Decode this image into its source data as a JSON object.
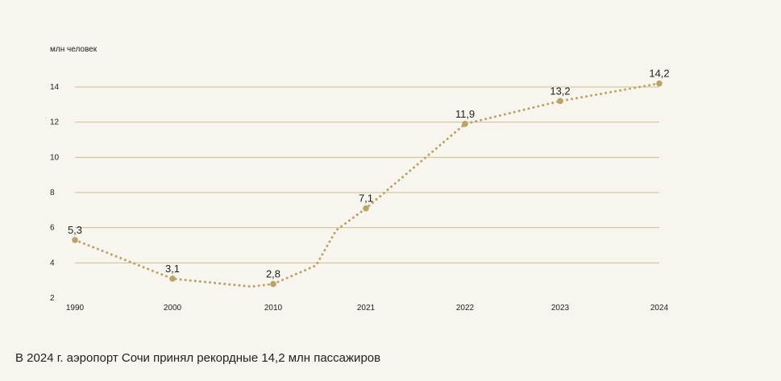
{
  "chart_data": {
    "type": "line",
    "ylabel": "млн человек",
    "ylim": [
      2,
      14
    ],
    "y_ticks": [
      2,
      4,
      6,
      8,
      10,
      12,
      14
    ],
    "categories": [
      "1990",
      "2000",
      "2010",
      "2021",
      "2022",
      "2023",
      "2024"
    ],
    "series": [
      {
        "values": [
          5.3,
          3.1,
          2.8,
          7.1,
          11.9,
          13.2,
          14.2
        ],
        "labels": [
          "5,3",
          "3,1",
          "2,8",
          "7,1",
          "11,9",
          "13,2",
          "14,2"
        ]
      }
    ],
    "grid": true,
    "line_style": "dotted",
    "color": "#b9a468",
    "grid_color": "#c8bf95"
  },
  "caption": "В 2024 г. аэропорт Сочи принял рекордные 14,2 млн пассажиров"
}
